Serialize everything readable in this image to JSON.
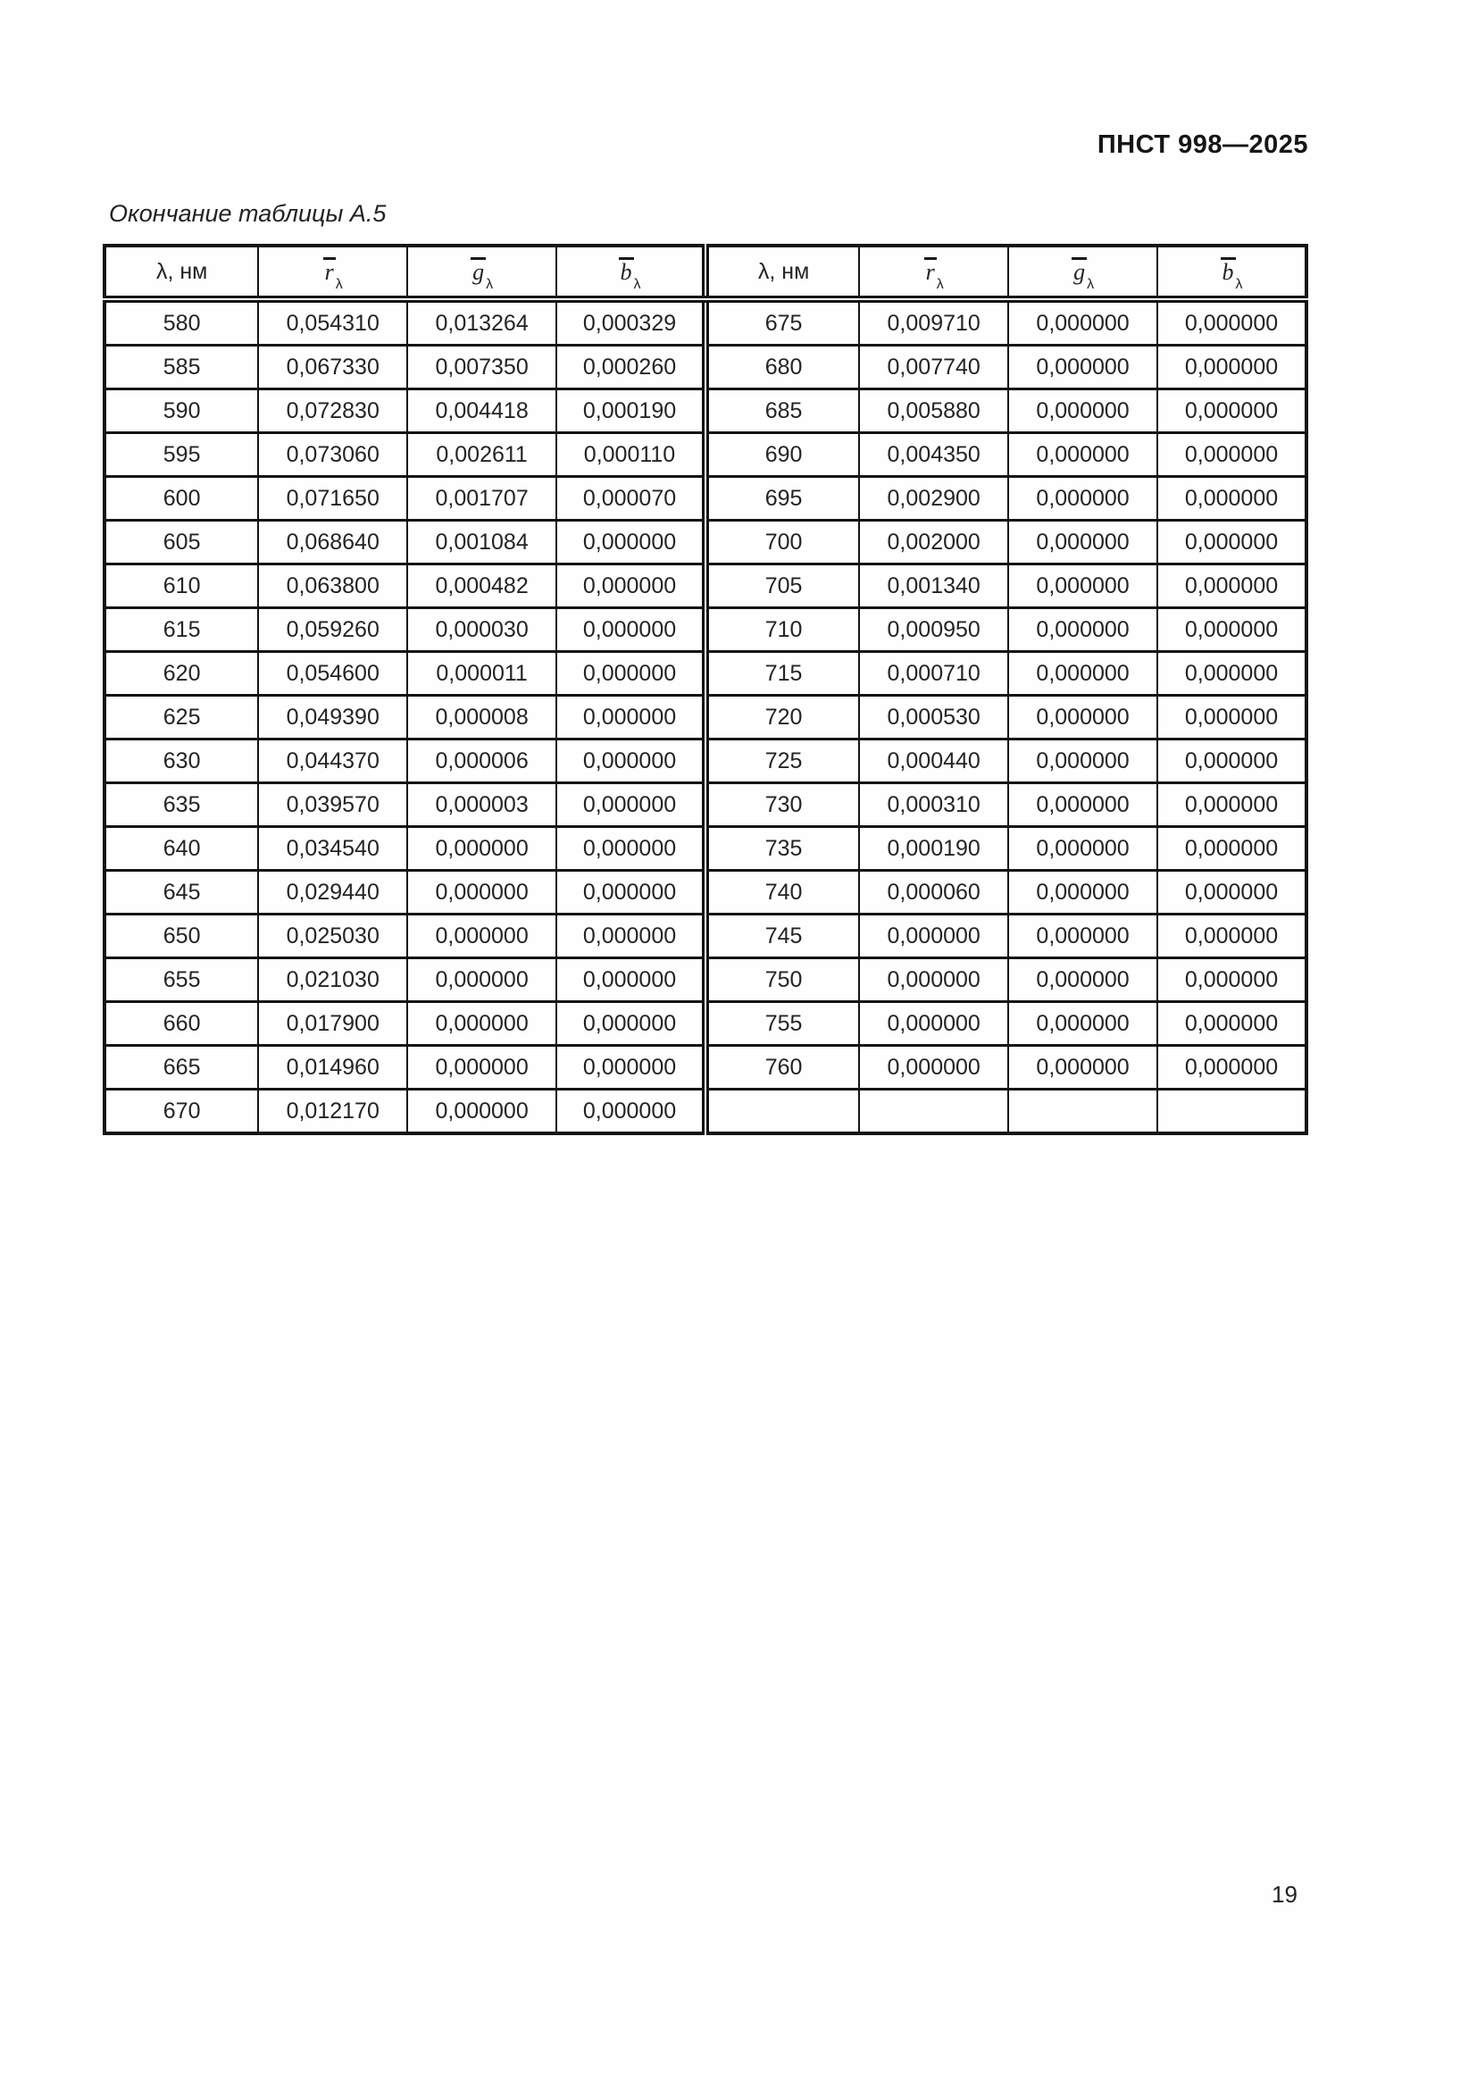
{
  "header": {
    "document_code": "ПНСТ 998—2025"
  },
  "footer": {
    "page_number": "19"
  },
  "table": {
    "caption": "Окончание таблицы А.5",
    "lambda_header": "λ, нм",
    "sym_headers": [
      {
        "letter": "r",
        "sub": "λ"
      },
      {
        "letter": "g",
        "sub": "λ"
      },
      {
        "letter": "b",
        "sub": "λ"
      }
    ],
    "rows": [
      [
        "580",
        "0,054310",
        "0,013264",
        "0,000329",
        "675",
        "0,009710",
        "0,000000",
        "0,000000"
      ],
      [
        "585",
        "0,067330",
        "0,007350",
        "0,000260",
        "680",
        "0,007740",
        "0,000000",
        "0,000000"
      ],
      [
        "590",
        "0,072830",
        "0,004418",
        "0,000190",
        "685",
        "0,005880",
        "0,000000",
        "0,000000"
      ],
      [
        "595",
        "0,073060",
        "0,002611",
        "0,000110",
        "690",
        "0,004350",
        "0,000000",
        "0,000000"
      ],
      [
        "600",
        "0,071650",
        "0,001707",
        "0,000070",
        "695",
        "0,002900",
        "0,000000",
        "0,000000"
      ],
      [
        "605",
        "0,068640",
        "0,001084",
        "0,000000",
        "700",
        "0,002000",
        "0,000000",
        "0,000000"
      ],
      [
        "610",
        "0,063800",
        "0,000482",
        "0,000000",
        "705",
        "0,001340",
        "0,000000",
        "0,000000"
      ],
      [
        "615",
        "0,059260",
        "0,000030",
        "0,000000",
        "710",
        "0,000950",
        "0,000000",
        "0,000000"
      ],
      [
        "620",
        "0,054600",
        "0,000011",
        "0,000000",
        "715",
        "0,000710",
        "0,000000",
        "0,000000"
      ],
      [
        "625",
        "0,049390",
        "0,000008",
        "0,000000",
        "720",
        "0,000530",
        "0,000000",
        "0,000000"
      ],
      [
        "630",
        "0,044370",
        "0,000006",
        "0,000000",
        "725",
        "0,000440",
        "0,000000",
        "0,000000"
      ],
      [
        "635",
        "0,039570",
        "0,000003",
        "0,000000",
        "730",
        "0,000310",
        "0,000000",
        "0,000000"
      ],
      [
        "640",
        "0,034540",
        "0,000000",
        "0,000000",
        "735",
        "0,000190",
        "0,000000",
        "0,000000"
      ],
      [
        "645",
        "0,029440",
        "0,000000",
        "0,000000",
        "740",
        "0,000060",
        "0,000000",
        "0,000000"
      ],
      [
        "650",
        "0,025030",
        "0,000000",
        "0,000000",
        "745",
        "0,000000",
        "0,000000",
        "0,000000"
      ],
      [
        "655",
        "0,021030",
        "0,000000",
        "0,000000",
        "750",
        "0,000000",
        "0,000000",
        "0,000000"
      ],
      [
        "660",
        "0,017900",
        "0,000000",
        "0,000000",
        "755",
        "0,000000",
        "0,000000",
        "0,000000"
      ],
      [
        "665",
        "0,014960",
        "0,000000",
        "0,000000",
        "760",
        "0,000000",
        "0,000000",
        "0,000000"
      ],
      [
        "670",
        "0,012170",
        "0,000000",
        "0,000000",
        "",
        "",
        "",
        ""
      ]
    ]
  }
}
